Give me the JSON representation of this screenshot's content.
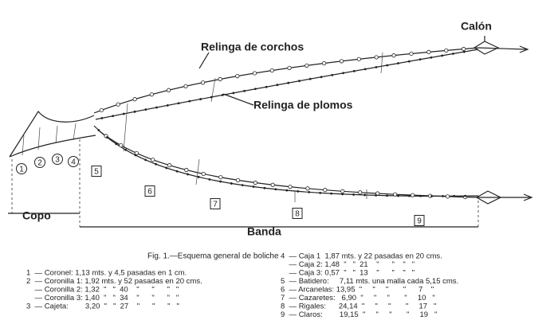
{
  "labels": {
    "calon": "Calón",
    "corchos": "Relinga de corchos",
    "plomos": "Relinga de plomos",
    "copo": "Copo",
    "banda": "Banda"
  },
  "sections": {
    "circled": [
      "1",
      "2",
      "3",
      "4"
    ],
    "boxed": [
      "5",
      "6",
      "7",
      "8",
      "9"
    ]
  },
  "caption": "Fig. 1.—Esquema general de boliche",
  "legend_left": [
    "1  — Coronel: 1,13 mts. y 4,5 pasadas en 1 cm.",
    "2  — Coronilla 1: 1,92 mts. y 52 pasadas en 20 cms.",
    "    — Coronilla 2: 1,32  \"   \"  40    \"      \"      \"   \"",
    "    — Coronilla 3: 1,40  \"   \"  34    \"      \"      \"   \"",
    "3  — Cajeta:        3,20  \"   \"  27    \"      \"      \"   \""
  ],
  "legend_right": [
    "4  — Caja 1  1,87 mts. y 22 pasadas en 20 cms.",
    "    — Caja 2: 1,48  \"   \"  21    \"      \"    \"   \"",
    "    — Caja 3: 0,57  \"   \"  13    \"      \"    \"   \"",
    "5  — Batidero:     7,11 mts. una malla cada 5,15 cms.",
    "6  — Arcanelas: 13,95  \"     \"     \"       \"      7    \"",
    "7  — Cazaretes:   6,90  \"     \"     \"       \"     10   \"",
    "8  — Rigales:      24,14  \"     \"     \"       \"     17   \"",
    "9  — Claros:        19,15  \"     \"     \"       \"     19   \""
  ]
}
